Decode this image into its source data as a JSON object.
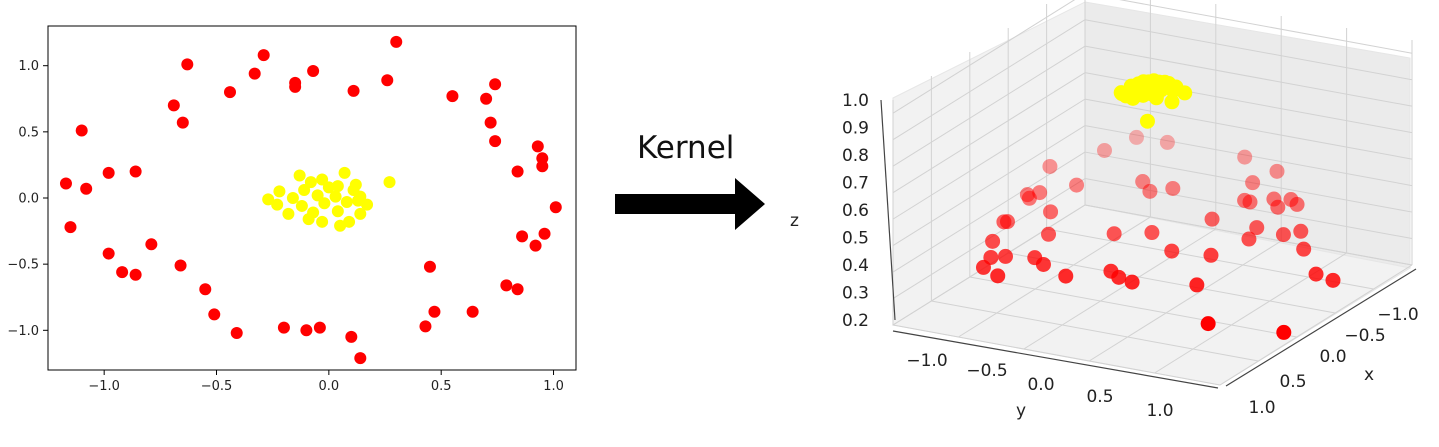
{
  "arrow_label": "Kernel",
  "colors": {
    "outer": "#ff0000",
    "inner": "#ffff00",
    "arrow": "#000000"
  },
  "chart_data": [
    {
      "type": "scatter",
      "title": "",
      "xlabel": "",
      "ylabel": "",
      "xlim": [
        -1.25,
        1.1
      ],
      "ylim": [
        -1.3,
        1.3
      ],
      "grid": false,
      "xticks": [
        -1.0,
        -0.5,
        0.0,
        0.5,
        1.0
      ],
      "xtick_labels": [
        "−1.0",
        "−0.5",
        "0.0",
        "0.5",
        "1.0"
      ],
      "yticks": [
        -1.0,
        -0.5,
        0.0,
        0.5,
        1.0
      ],
      "ytick_labels": [
        "−1.0",
        "−0.5",
        "0.0",
        "0.5",
        "1.0"
      ],
      "series": [
        {
          "color": "#ff0000",
          "points": [
            [
              0.3,
              1.18
            ],
            [
              -0.29,
              1.08
            ],
            [
              -0.63,
              1.01
            ],
            [
              -0.33,
              0.94
            ],
            [
              -0.07,
              0.96
            ],
            [
              -0.15,
              0.87
            ],
            [
              -0.15,
              0.84
            ],
            [
              0.26,
              0.89
            ],
            [
              0.74,
              0.86
            ],
            [
              -0.44,
              0.8
            ],
            [
              0.11,
              0.81
            ],
            [
              0.55,
              0.77
            ],
            [
              0.7,
              0.75
            ],
            [
              -0.69,
              0.7
            ],
            [
              -0.65,
              0.57
            ],
            [
              0.72,
              0.57
            ],
            [
              -1.1,
              0.51
            ],
            [
              0.74,
              0.43
            ],
            [
              0.93,
              0.39
            ],
            [
              0.95,
              0.3
            ],
            [
              0.95,
              0.24
            ],
            [
              0.84,
              0.2
            ],
            [
              -0.98,
              0.19
            ],
            [
              -0.86,
              0.2
            ],
            [
              -1.17,
              0.11
            ],
            [
              -1.08,
              0.07
            ],
            [
              1.01,
              -0.07
            ],
            [
              -1.15,
              -0.22
            ],
            [
              0.96,
              -0.27
            ],
            [
              0.86,
              -0.29
            ],
            [
              -0.79,
              -0.35
            ],
            [
              0.92,
              -0.36
            ],
            [
              -0.98,
              -0.42
            ],
            [
              -0.66,
              -0.51
            ],
            [
              0.45,
              -0.52
            ],
            [
              -0.92,
              -0.56
            ],
            [
              -0.86,
              -0.58
            ],
            [
              0.79,
              -0.66
            ],
            [
              0.84,
              -0.69
            ],
            [
              -0.55,
              -0.69
            ],
            [
              0.64,
              -0.86
            ],
            [
              0.47,
              -0.86
            ],
            [
              -0.51,
              -0.88
            ],
            [
              0.43,
              -0.97
            ],
            [
              -0.04,
              -0.98
            ],
            [
              -0.2,
              -0.98
            ],
            [
              -0.1,
              -1.0
            ],
            [
              -0.41,
              -1.02
            ],
            [
              0.1,
              -1.05
            ],
            [
              0.14,
              -1.21
            ]
          ]
        },
        {
          "color": "#ffff00",
          "points": [
            [
              0.27,
              0.12
            ],
            [
              0.07,
              0.19
            ],
            [
              -0.13,
              0.17
            ],
            [
              0.12,
              0.1
            ],
            [
              -0.03,
              0.14
            ],
            [
              0.04,
              0.09
            ],
            [
              -0.22,
              0.05
            ],
            [
              -0.11,
              0.06
            ],
            [
              0.0,
              0.08
            ],
            [
              0.11,
              0.06
            ],
            [
              -0.27,
              -0.01
            ],
            [
              -0.16,
              0.0
            ],
            [
              -0.05,
              0.02
            ],
            [
              0.03,
              0.01
            ],
            [
              0.14,
              0.01
            ],
            [
              -0.23,
              -0.05
            ],
            [
              -0.12,
              -0.06
            ],
            [
              -0.02,
              -0.04
            ],
            [
              0.08,
              -0.03
            ],
            [
              0.17,
              -0.05
            ],
            [
              -0.18,
              -0.12
            ],
            [
              -0.07,
              -0.11
            ],
            [
              0.04,
              -0.1
            ],
            [
              0.14,
              -0.12
            ],
            [
              -0.03,
              -0.18
            ],
            [
              0.09,
              -0.18
            ],
            [
              -0.09,
              -0.16
            ],
            [
              0.05,
              -0.21
            ],
            [
              0.13,
              -0.02
            ],
            [
              -0.08,
              0.12
            ]
          ]
        }
      ]
    },
    {
      "type": "scatter3d",
      "title": "",
      "xlabel": "x",
      "ylabel": "y",
      "zlabel": "z",
      "xlim": [
        -1.25,
        1.25
      ],
      "ylim": [
        -1.25,
        1.25
      ],
      "zlim": [
        0.2,
        1.05
      ],
      "grid": true,
      "xtick_labels": [
        "−1.0",
        "−0.5",
        "0.0",
        "0.5",
        "1.0"
      ],
      "ytick_labels": [
        "−1.0",
        "−0.5",
        "0.0",
        "0.5",
        "1.0"
      ],
      "ztick_labels": [
        "0.2",
        "0.3",
        "0.4",
        "0.5",
        "0.6",
        "0.7",
        "0.8",
        "0.9",
        "1.0"
      ],
      "series": [
        {
          "color": "#ff0000",
          "mapping": "outer ring points lifted to low z (0.2 to 0.7)"
        },
        {
          "color": "#ffff00",
          "mapping": "inner cluster points lifted to high z (about 1.0)"
        }
      ]
    }
  ]
}
